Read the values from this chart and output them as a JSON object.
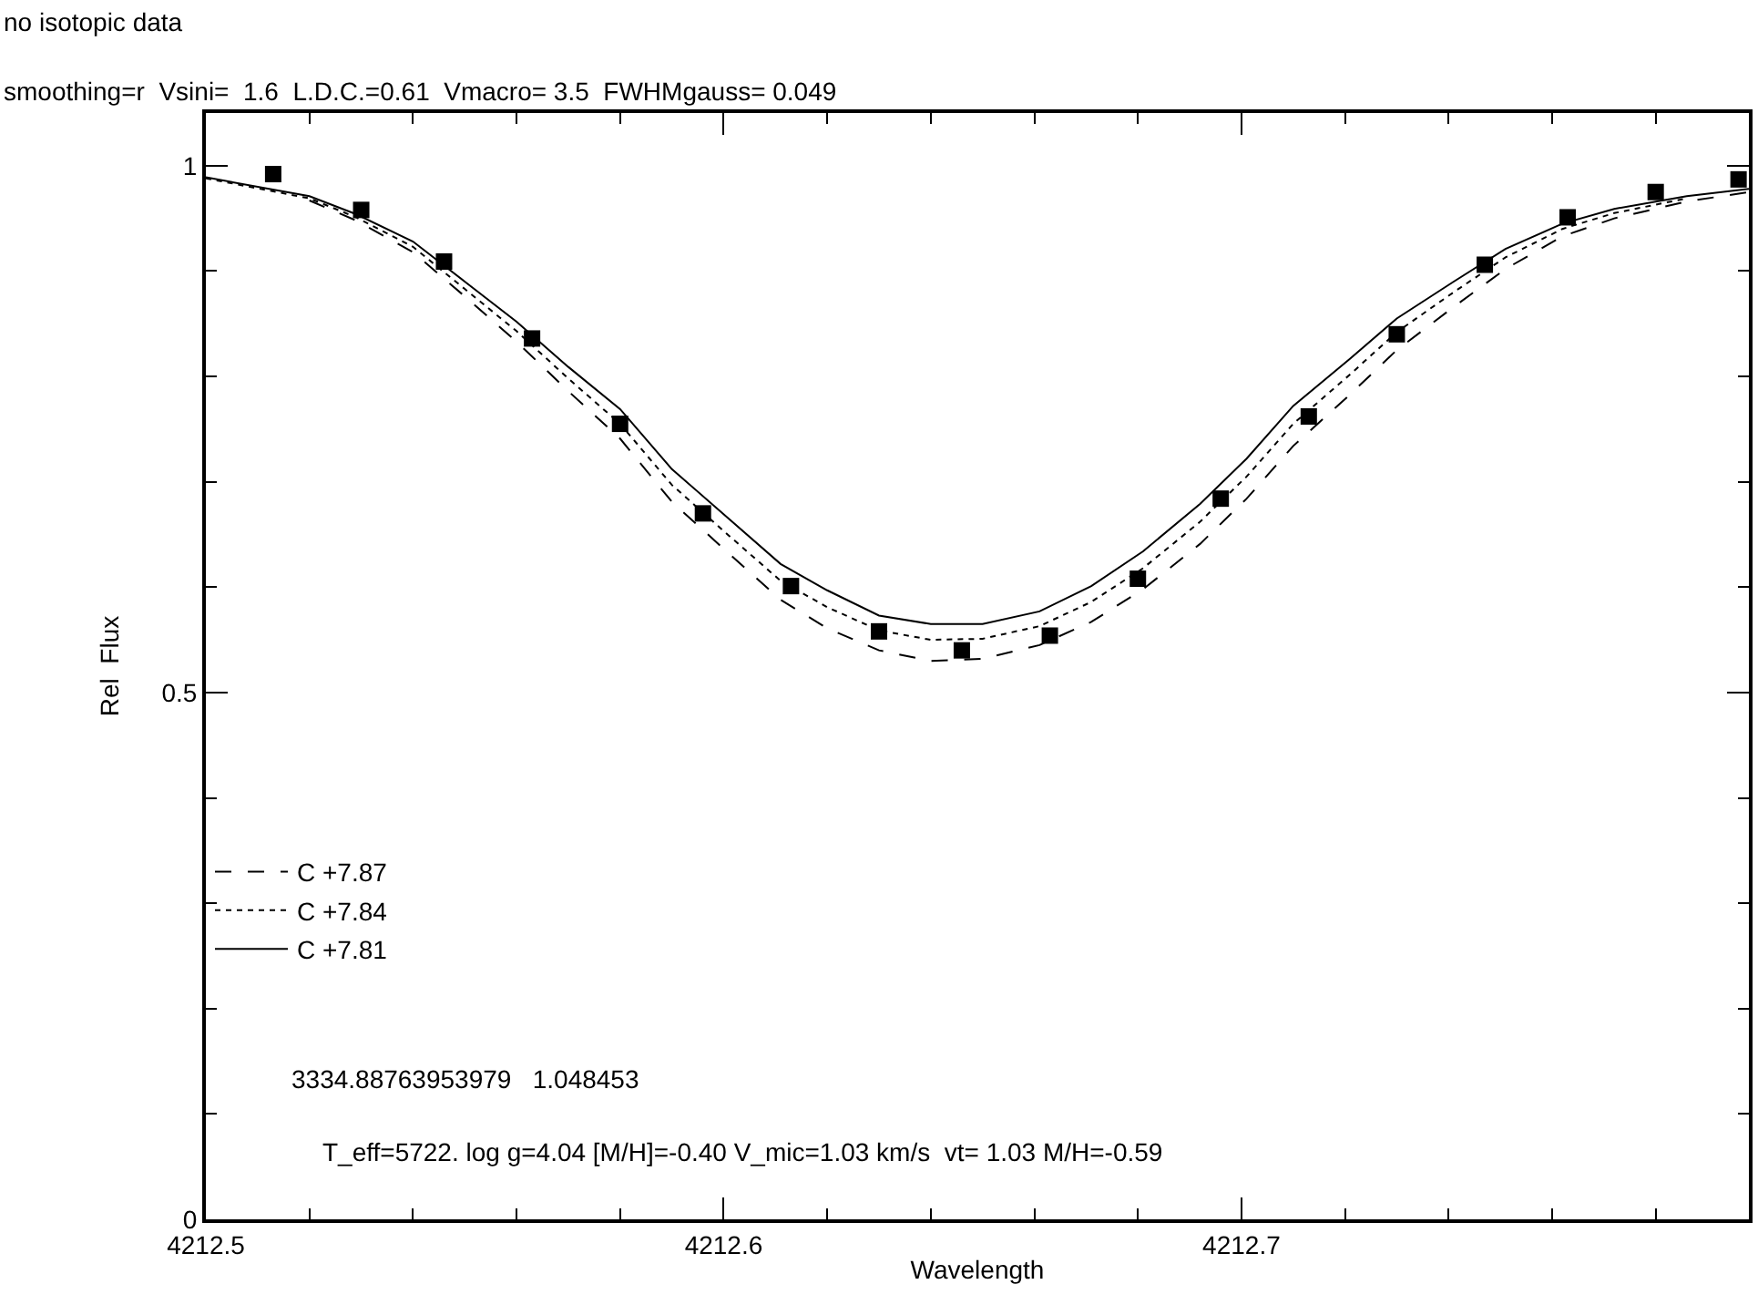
{
  "chart_data": {
    "type": "line",
    "title": "no isotopic data",
    "subtitle": "smoothing=r  Vsini=  1.6  L.D.C.=0.61  Vmacro= 3.5  FWHMgauss= 0.049",
    "xlabel": "Wavelength",
    "ylabel": "Rel  Flux",
    "xlim": [
      4212.5,
      4212.798
    ],
    "ylim": [
      0,
      1.05
    ],
    "xticks": [
      {
        "value": 4212.5,
        "label": "4212.5"
      },
      {
        "value": 4212.52,
        "label": null
      },
      {
        "value": 4212.54,
        "label": null
      },
      {
        "value": 4212.56,
        "label": null
      },
      {
        "value": 4212.58,
        "label": null
      },
      {
        "value": 4212.6,
        "label": "4212.6"
      },
      {
        "value": 4212.62,
        "label": null
      },
      {
        "value": 4212.64,
        "label": null
      },
      {
        "value": 4212.66,
        "label": null
      },
      {
        "value": 4212.68,
        "label": null
      },
      {
        "value": 4212.7,
        "label": "4212.7"
      },
      {
        "value": 4212.72,
        "label": null
      },
      {
        "value": 4212.74,
        "label": null
      },
      {
        "value": 4212.76,
        "label": null
      },
      {
        "value": 4212.78,
        "label": null
      }
    ],
    "yticks": [
      0,
      {
        "value": 0.1,
        "label": null
      },
      {
        "value": 0.2,
        "label": null
      },
      {
        "value": 0.3,
        "label": null
      },
      {
        "value": 0.4,
        "label": null
      },
      0.5,
      {
        "value": 0.6,
        "label": null
      },
      {
        "value": 0.7,
        "label": null
      },
      {
        "value": 0.8,
        "label": null
      },
      {
        "value": 0.9,
        "label": null
      },
      1
    ],
    "legend": "bottom left",
    "series": [
      {
        "name": "C +7.87",
        "color": "#000000",
        "line_style": "dashed",
        "x": [
          4212.52,
          4212.529,
          4212.54,
          4212.55,
          4212.56,
          4212.57,
          4212.58,
          4212.59,
          4212.601,
          4212.611,
          4212.62,
          4212.63,
          4212.64,
          4212.65,
          4212.661,
          4212.671,
          4212.681,
          4212.692,
          4212.701,
          4212.71,
          4212.721,
          4212.73,
          4212.741,
          4212.751,
          4212.762,
          4212.772,
          4212.786,
          4212.798
        ],
        "values": [
          0.967,
          0.948,
          0.918,
          0.876,
          0.833,
          0.786,
          0.741,
          0.681,
          0.632,
          0.588,
          0.561,
          0.54,
          0.53,
          0.532,
          0.545,
          0.567,
          0.598,
          0.641,
          0.684,
          0.734,
          0.783,
          0.825,
          0.866,
          0.902,
          0.933,
          0.95,
          0.966,
          0.975
        ]
      },
      {
        "name": "C +7.84",
        "color": "#000000",
        "line_style": "dotted",
        "x": [
          4212.5,
          4212.52,
          4212.529,
          4212.54,
          4212.55,
          4212.56,
          4212.57,
          4212.58,
          4212.59,
          4212.601,
          4212.611,
          4212.62,
          4212.63,
          4212.64,
          4212.65,
          4212.661,
          4212.671,
          4212.681,
          4212.692,
          4212.701,
          4212.71,
          4212.721,
          4212.73,
          4212.741,
          4212.751,
          4212.762,
          4212.772,
          4212.786
        ],
        "values": [
          0.988,
          0.969,
          0.951,
          0.923,
          0.883,
          0.843,
          0.798,
          0.755,
          0.697,
          0.649,
          0.606,
          0.581,
          0.559,
          0.55,
          0.551,
          0.563,
          0.586,
          0.618,
          0.662,
          0.705,
          0.755,
          0.802,
          0.842,
          0.88,
          0.913,
          0.94,
          0.955,
          0.969
        ]
      },
      {
        "name": "C +7.81",
        "color": "#000000",
        "line_style": "solid",
        "x": [
          4212.5,
          4212.52,
          4212.529,
          4212.54,
          4212.55,
          4212.56,
          4212.57,
          4212.58,
          4212.59,
          4212.601,
          4212.611,
          4212.62,
          4212.63,
          4212.64,
          4212.65,
          4212.661,
          4212.671,
          4212.681,
          4212.692,
          4212.701,
          4212.71,
          4212.721,
          4212.73,
          4212.741,
          4212.751,
          4212.762,
          4212.772,
          4212.786,
          4212.798
        ],
        "values": [
          0.989,
          0.971,
          0.954,
          0.928,
          0.89,
          0.852,
          0.809,
          0.769,
          0.712,
          0.665,
          0.622,
          0.597,
          0.573,
          0.565,
          0.565,
          0.577,
          0.601,
          0.634,
          0.679,
          0.722,
          0.772,
          0.817,
          0.855,
          0.89,
          0.921,
          0.945,
          0.959,
          0.971,
          0.978
        ]
      },
      {
        "type": "scatter",
        "marker": "square",
        "color": "#000000",
        "x": [
          4212.513,
          4212.53,
          4212.546,
          4212.563,
          4212.58,
          4212.596,
          4212.613,
          4212.63,
          4212.646,
          4212.663,
          4212.68,
          4212.696,
          4212.713,
          4212.73,
          4212.747,
          4212.763,
          4212.78,
          4212.796
        ],
        "values": [
          0.992,
          0.958,
          0.909,
          0.836,
          0.755,
          0.67,
          0.601,
          0.558,
          0.54,
          0.554,
          0.608,
          0.684,
          0.762,
          0.84,
          0.906,
          0.951,
          0.975,
          0.987
        ]
      }
    ],
    "annotations": [
      "3334.88763953979   1.048453",
      "T_eff=5722. log g=4.04 [M/H]=-0.40 V_mic=1.03 km/s  vt= 1.03 M/H=-0.59"
    ]
  }
}
